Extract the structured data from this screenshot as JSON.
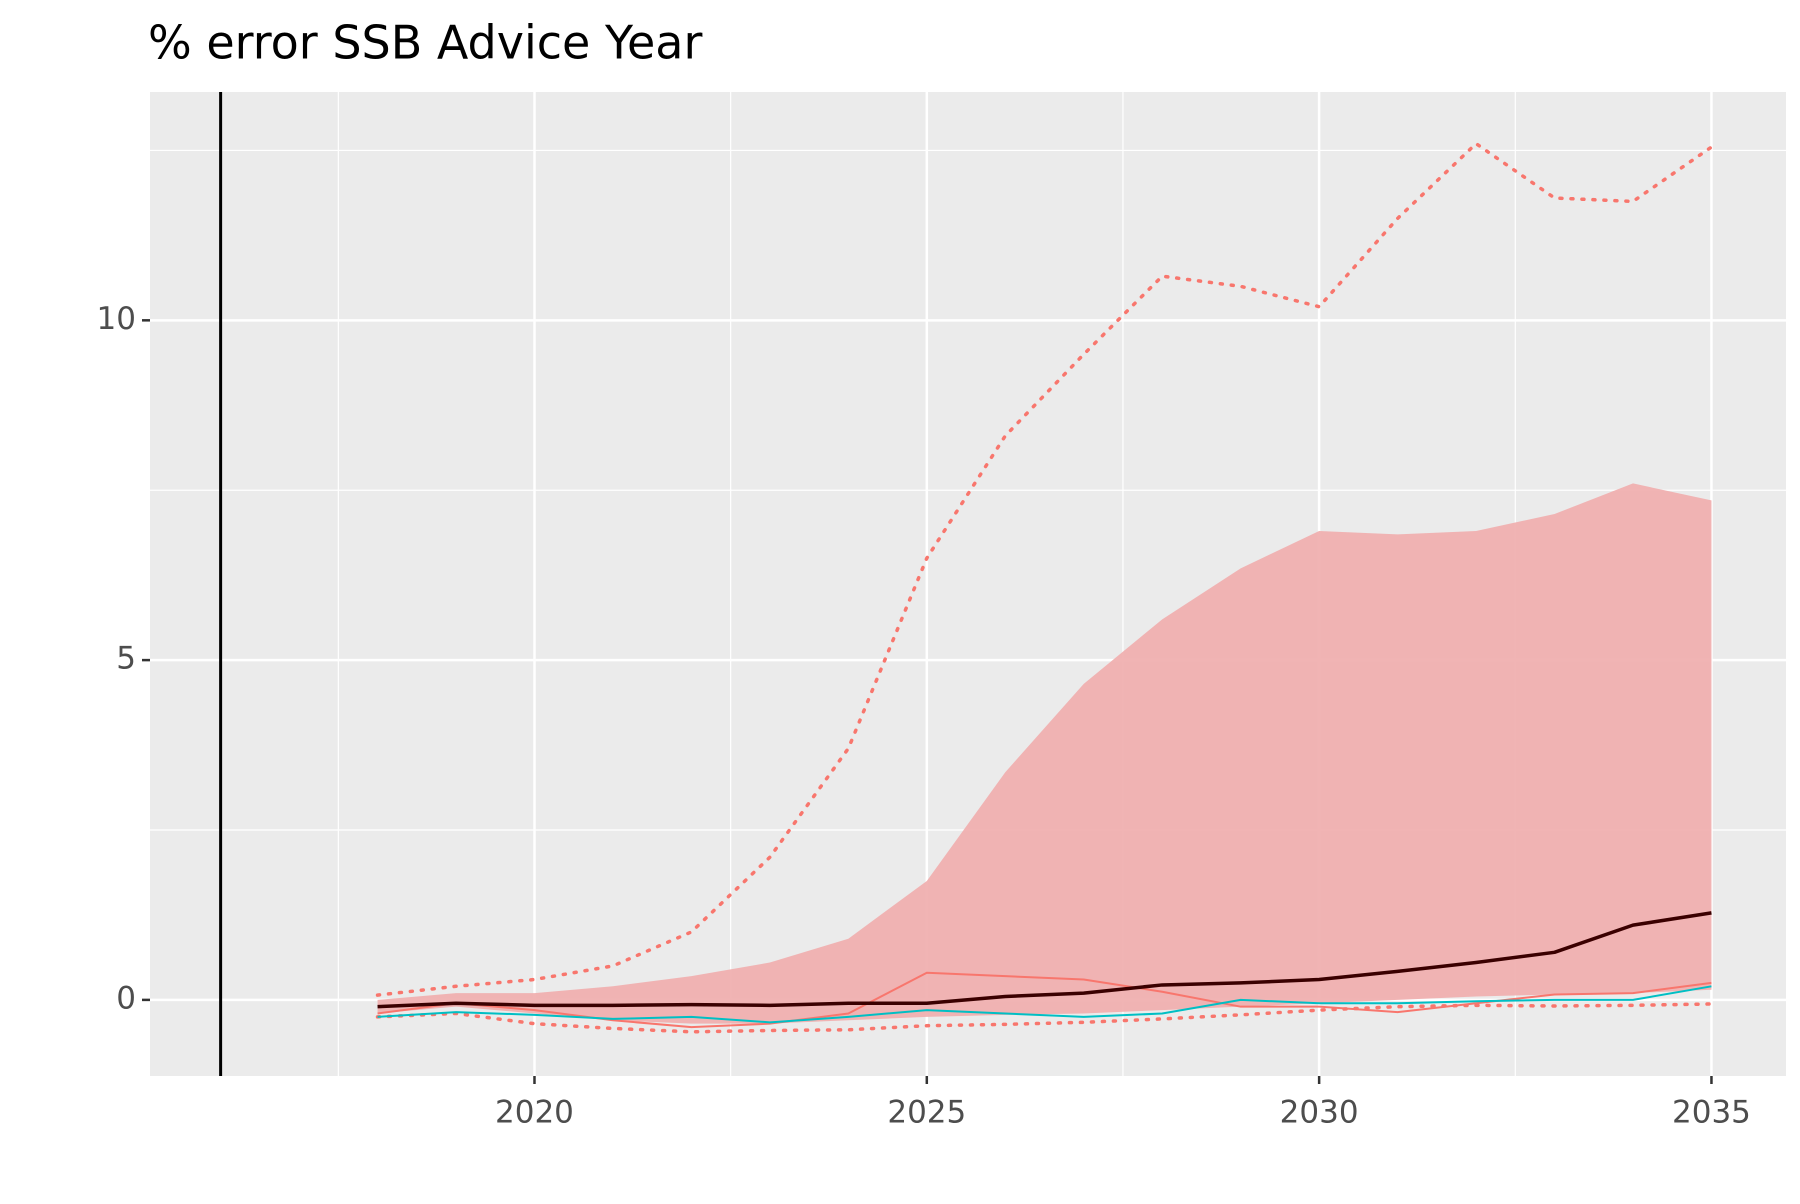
{
  "chart_data": {
    "type": "line",
    "title": "% error SSB Advice Year",
    "x": [
      2018,
      2019,
      2020,
      2021,
      2022,
      2023,
      2024,
      2025,
      2026,
      2027,
      2028,
      2029,
      2030,
      2031,
      2032,
      2033,
      2034,
      2035
    ],
    "band": {
      "color": "#f0b0b0",
      "upper": [
        0.0,
        0.1,
        0.1,
        0.2,
        0.35,
        0.55,
        0.9,
        1.75,
        3.35,
        4.65,
        5.6,
        6.35,
        6.9,
        6.85,
        6.9,
        7.15,
        7.6,
        7.35
      ],
      "lower": [
        -0.2,
        -0.1,
        -0.2,
        -0.3,
        -0.35,
        -0.35,
        -0.3,
        -0.25,
        -0.22,
        -0.2,
        -0.15,
        -0.1,
        -0.05,
        0.0,
        0.05,
        0.08,
        0.1,
        0.15
      ]
    },
    "series": [
      {
        "color": "#f8766d",
        "dash": "dotted",
        "width": 3.5,
        "values": [
          0.07,
          0.2,
          0.3,
          0.5,
          1.0,
          2.1,
          3.7,
          6.5,
          8.3,
          9.5,
          10.65,
          10.5,
          10.2,
          11.5,
          12.6,
          11.8,
          11.75,
          12.55
        ]
      },
      {
        "color": "#f8766d",
        "dash": "dotted",
        "width": 3.5,
        "values": [
          -0.25,
          -0.2,
          -0.35,
          -0.42,
          -0.47,
          -0.45,
          -0.44,
          -0.38,
          -0.36,
          -0.33,
          -0.28,
          -0.22,
          -0.15,
          -0.1,
          -0.08,
          -0.09,
          -0.08,
          -0.06
        ]
      },
      {
        "color": "#f8766d",
        "dash": "solid",
        "width": 2,
        "values": [
          -0.2,
          -0.05,
          -0.15,
          -0.3,
          -0.4,
          -0.35,
          -0.2,
          0.4,
          0.35,
          0.3,
          0.12,
          -0.1,
          -0.1,
          -0.18,
          -0.05,
          0.08,
          0.1,
          0.25
        ]
      },
      {
        "color": "#00bfc4",
        "dash": "solid",
        "width": 2,
        "values": [
          -0.25,
          -0.18,
          -0.22,
          -0.28,
          -0.25,
          -0.33,
          -0.25,
          -0.15,
          -0.2,
          -0.25,
          -0.2,
          0.0,
          -0.05,
          -0.05,
          -0.02,
          0.0,
          0.0,
          0.2
        ]
      },
      {
        "color": "#3a0000",
        "dash": "solid",
        "width": 3.5,
        "values": [
          -0.1,
          -0.05,
          -0.08,
          -0.08,
          -0.07,
          -0.08,
          -0.05,
          -0.05,
          0.05,
          0.1,
          0.22,
          0.25,
          0.3,
          0.42,
          0.55,
          0.7,
          1.1,
          1.28
        ]
      }
    ],
    "vlines": [
      2016
    ],
    "xlim": [
      2015.1,
      2035.95
    ],
    "ylim": [
      -1.12,
      13.36
    ],
    "xticks": [
      2020,
      2025,
      2030,
      2035
    ],
    "yticks": [
      0,
      5,
      10
    ],
    "x_minor_ticks": [
      2017.5,
      2022.5,
      2027.5,
      2032.5
    ],
    "y_minor_ticks": [
      2.5,
      7.5,
      12.5
    ],
    "grid": true
  }
}
